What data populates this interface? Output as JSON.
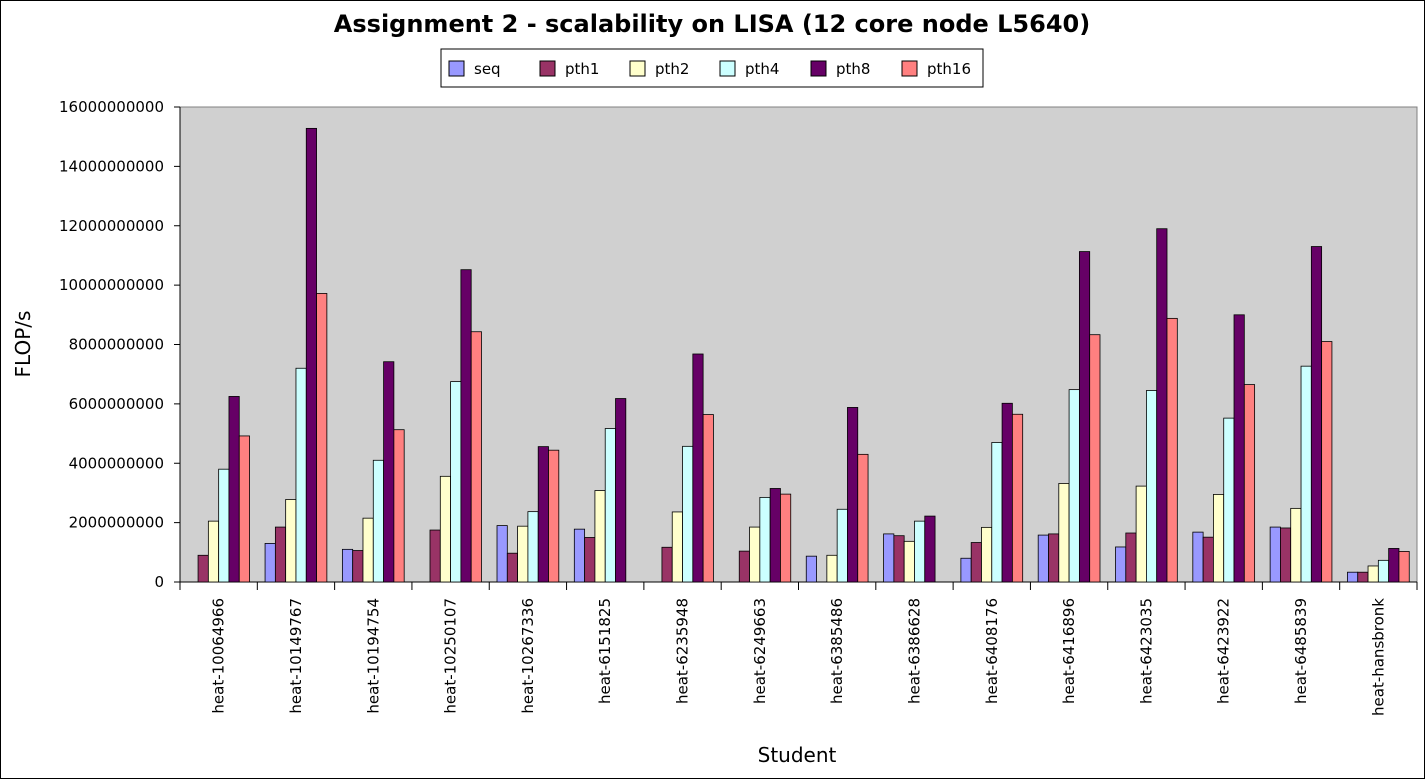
{
  "chart_data": {
    "type": "bar",
    "title": "Assignment 2 - scalability on LISA (12 core node L5640)",
    "xlabel": "Student",
    "ylabel": "FLOP/s",
    "ylim": [
      0,
      16000000000
    ],
    "yticks": [
      0,
      2000000000,
      4000000000,
      6000000000,
      8000000000,
      10000000000,
      12000000000,
      14000000000,
      16000000000
    ],
    "ytick_labels": [
      "0",
      "2000000000",
      "4000000000",
      "6000000000",
      "8000000000",
      "10000000000",
      "12000000000",
      "14000000000",
      "16000000000"
    ],
    "grid": false,
    "legend_position": "top-center",
    "categories": [
      "heat-10064966",
      "heat-10149767",
      "heat-10194754",
      "heat-10250107",
      "heat-10267336",
      "heat-6151825",
      "heat-6235948",
      "heat-6249663",
      "heat-6385486",
      "heat-6386628",
      "heat-6408176",
      "heat-6416896",
      "heat-6423035",
      "heat-6423922",
      "heat-6485839",
      "heat-hansbronk"
    ],
    "series": [
      {
        "name": "seq",
        "color": "#9999ff",
        "values": [
          0,
          1300000000,
          1100000000,
          0,
          1900000000,
          1780000000,
          0,
          0,
          870000000,
          1620000000,
          800000000,
          1580000000,
          1180000000,
          1680000000,
          1850000000,
          330000000
        ]
      },
      {
        "name": "pth1",
        "color": "#993366",
        "values": [
          900000000,
          1850000000,
          1060000000,
          1750000000,
          970000000,
          1500000000,
          1170000000,
          1040000000,
          0,
          1560000000,
          1330000000,
          1620000000,
          1650000000,
          1510000000,
          1820000000,
          330000000
        ]
      },
      {
        "name": "pth2",
        "color": "#ffffcc",
        "values": [
          2050000000,
          2780000000,
          2150000000,
          3560000000,
          1880000000,
          3080000000,
          2360000000,
          1850000000,
          900000000,
          1370000000,
          1840000000,
          3320000000,
          3230000000,
          2950000000,
          2480000000,
          540000000
        ]
      },
      {
        "name": "pth4",
        "color": "#ccffff",
        "values": [
          3800000000,
          7200000000,
          4100000000,
          6750000000,
          2370000000,
          5170000000,
          4570000000,
          2850000000,
          2450000000,
          2050000000,
          4700000000,
          6480000000,
          6450000000,
          5520000000,
          7270000000,
          730000000
        ]
      },
      {
        "name": "pth8",
        "color": "#660066",
        "values": [
          6250000000,
          15280000000,
          7420000000,
          10520000000,
          4560000000,
          6180000000,
          7680000000,
          3150000000,
          5880000000,
          2220000000,
          6020000000,
          11130000000,
          11900000000,
          9000000000,
          11300000000,
          1130000000
        ]
      },
      {
        "name": "pth16",
        "color": "#ff8080",
        "values": [
          4920000000,
          9720000000,
          5130000000,
          8430000000,
          4440000000,
          0,
          5640000000,
          2960000000,
          4300000000,
          0,
          5650000000,
          8330000000,
          8880000000,
          6650000000,
          8100000000,
          1030000000
        ]
      }
    ]
  }
}
